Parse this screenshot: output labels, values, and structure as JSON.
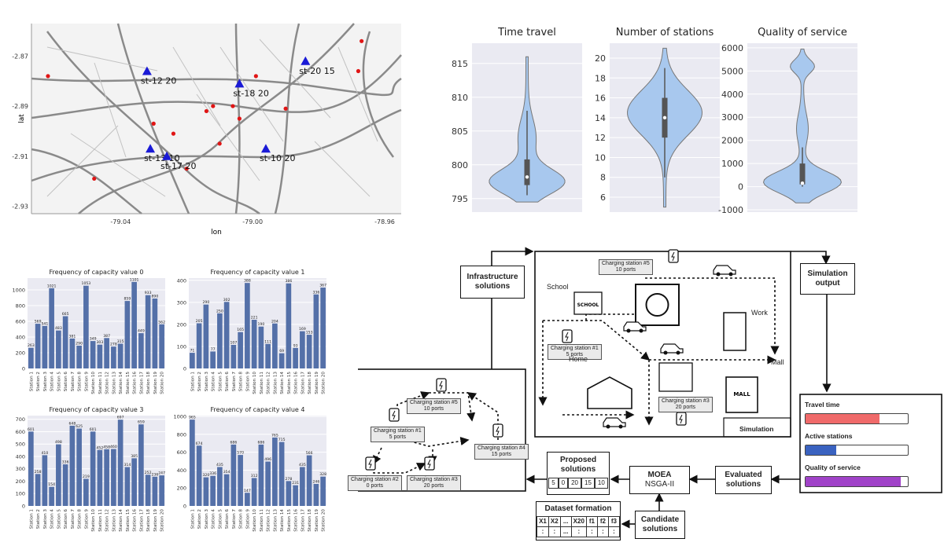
{
  "map": {
    "x_label": "lon",
    "y_label": "lat",
    "x_ticks": [
      "-79.04",
      "-79.00",
      "-78.96"
    ],
    "y_ticks": [
      "-2.87",
      "-2.89",
      "-2.91",
      "-2.93"
    ],
    "stations": [
      {
        "label": "st-12 20",
        "lon": -79.032,
        "lat": -2.876
      },
      {
        "label": "st-18 20",
        "lon": -79.004,
        "lat": -2.881
      },
      {
        "label": "st-20 15",
        "lon": -78.984,
        "lat": -2.872
      },
      {
        "label": "st-13 10",
        "lon": -79.031,
        "lat": -2.907
      },
      {
        "label": "st-17 20",
        "lon": -79.026,
        "lat": -2.91
      },
      {
        "label": "st-10 20",
        "lon": -78.996,
        "lat": -2.907
      }
    ],
    "points": [
      {
        "lon": -79.062,
        "lat": -2.878
      },
      {
        "lon": -79.03,
        "lat": -2.897
      },
      {
        "lon": -79.024,
        "lat": -2.901
      },
      {
        "lon": -79.004,
        "lat": -2.895
      },
      {
        "lon": -79.012,
        "lat": -2.89
      },
      {
        "lon": -79.014,
        "lat": -2.892
      },
      {
        "lon": -79.006,
        "lat": -2.89
      },
      {
        "lon": -78.999,
        "lat": -2.878
      },
      {
        "lon": -78.99,
        "lat": -2.891
      },
      {
        "lon": -78.967,
        "lat": -2.864
      },
      {
        "lon": -78.968,
        "lat": -2.876
      },
      {
        "lon": -79.01,
        "lat": -2.905
      },
      {
        "lon": -79.02,
        "lat": -2.915
      },
      {
        "lon": -79.048,
        "lat": -2.919
      }
    ],
    "colors": {
      "station": "#1a1ad6",
      "point": "#e01515",
      "road": "#8a8a8a"
    }
  },
  "violins": [
    {
      "title": "Time travel",
      "ticks": [
        "815",
        "810",
        "805",
        "800",
        "795"
      ],
      "range": [
        793,
        818
      ],
      "min": 794.5,
      "max": 816,
      "q1": 797,
      "median": 798.2,
      "q3": 800.8,
      "whisker": [
        795.5,
        808
      ]
    },
    {
      "title": "Number of stations",
      "ticks": [
        "20",
        "18",
        "16",
        "14",
        "12",
        "10",
        "8",
        "6"
      ],
      "range": [
        4.5,
        21.5
      ],
      "min": 5,
      "max": 21,
      "q1": 12,
      "median": 14,
      "q3": 16,
      "whisker": [
        8,
        19
      ]
    },
    {
      "title": "Quality of service",
      "ticks": [
        "6000",
        "5000",
        "4000",
        "3000",
        "2000",
        "1000",
        "0",
        "-1000"
      ],
      "range": [
        -1100,
        6200
      ],
      "min": -700,
      "max": 5950,
      "q1": 100,
      "median": 150,
      "q3": 1000,
      "whisker": [
        0,
        1700
      ]
    }
  ],
  "chart_data": [
    {
      "type": "bar",
      "title": "Frequency of capacity value 0",
      "categories": [
        "Station 1",
        "Station 2",
        "Station 3",
        "Station 4",
        "Station 5",
        "Station 6",
        "Station 7",
        "Station 8",
        "Station 9",
        "Station 10",
        "Station 11",
        "Station 12",
        "Station 13",
        "Station 14",
        "Station 15",
        "Station 16",
        "Station 17",
        "Station 18",
        "Station 19",
        "Station 20"
      ],
      "values": [
        263,
        569,
        541,
        1021,
        483,
        665,
        381,
        290,
        1053,
        349,
        303,
        387,
        278,
        315,
        859,
        1101,
        449,
        933,
        890,
        562
      ],
      "yticks": [
        "0",
        "200",
        "400",
        "600",
        "800",
        "1000"
      ],
      "ylim": [
        0,
        1150
      ]
    },
    {
      "type": "bar",
      "title": "Frequency of capacity value 1",
      "categories": [
        "Station 1",
        "Station 2",
        "Station 3",
        "Station 4",
        "Station 5",
        "Station 6",
        "Station 7",
        "Station 8",
        "Station 9",
        "Station 10",
        "Station 11",
        "Station 12",
        "Station 13",
        "Station 14",
        "Station 15",
        "Station 16",
        "Station 17",
        "Station 18",
        "Station 19",
        "Station 20"
      ],
      "values": [
        71,
        205,
        290,
        77,
        250,
        302,
        107,
        165,
        388,
        221,
        190,
        111,
        204,
        69,
        386,
        93,
        169,
        153,
        336,
        367
      ],
      "yticks": [
        "0",
        "100",
        "200",
        "300",
        "400"
      ],
      "ylim": [
        0,
        410
      ]
    },
    {
      "type": "bar",
      "title": "Frequency of capacity value 3",
      "categories": [
        "Station 1",
        "Station 2",
        "Station 3",
        "Station 4",
        "Station 5",
        "Station 6",
        "Station 7",
        "Station 8",
        "Station 9",
        "Station 10",
        "Station 11",
        "Station 12",
        "Station 13",
        "Station 14",
        "Station 15",
        "Station 16",
        "Station 17",
        "Station 18",
        "Station 19",
        "Station 20"
      ],
      "values": [
        601,
        258,
        410,
        154,
        498,
        336,
        648,
        625,
        219,
        601,
        452,
        458,
        460,
        697,
        314,
        385,
        659,
        252,
        236,
        247
      ],
      "yticks": [
        "0",
        "100",
        "200",
        "300",
        "400",
        "500",
        "600",
        "700"
      ],
      "ylim": [
        0,
        730
      ]
    },
    {
      "type": "bar",
      "title": "Frequency of capacity value 4",
      "categories": [
        "Station 1",
        "Station 2",
        "Station 3",
        "Station 4",
        "Station 5",
        "Station 6",
        "Station 7",
        "Station 8",
        "Station 9",
        "Station 10",
        "Station 11",
        "Station 12",
        "Station 13",
        "Station 14",
        "Station 15",
        "Station 16",
        "Station 17",
        "Station 18",
        "Station 19",
        "Station 20"
      ],
      "values": [
        965,
        674,
        320,
        336,
        435,
        354,
        686,
        570,
        147,
        312,
        686,
        496,
        765,
        715,
        278,
        231,
        435,
        566,
        246,
        328
      ],
      "yticks": [
        "0",
        "200",
        "400",
        "600",
        "800",
        "1000"
      ],
      "ylim": [
        0,
        1010
      ]
    }
  ],
  "diagram": {
    "infrastructure": "Infrastructure solutions",
    "simulation_output": "Simulation output",
    "simulation": "Simulation",
    "places": {
      "school": "School",
      "home": "Home",
      "work": "Work",
      "mall": "Mall"
    },
    "sim_tags": {
      "cs5": "Charging station #5\n10 ports",
      "cs1": "Charging station #1\n5 ports",
      "cs3": "Charging station #3\n20 ports"
    },
    "infra_tags": {
      "cs5": "Charging station #5\n10 ports",
      "cs1": "Charging station #1\n5 ports",
      "cs4": "Charging station #4\n15 ports",
      "cs2": "Charging station #2\n0 ports",
      "cs3": "Charging station #3\n20 ports"
    },
    "metrics": [
      {
        "label": "Travel time",
        "level": 0.72,
        "color": "#f06a6a"
      },
      {
        "label": "Active stations",
        "level": 0.3,
        "color": "#3a62c0"
      },
      {
        "label": "Quality of service",
        "level": 0.93,
        "color": "#a042c8"
      }
    ],
    "proposed": {
      "title": "Proposed solutions",
      "values": [
        "5",
        "0",
        "20",
        "15",
        "10"
      ]
    },
    "moea": {
      "title": "MOEA",
      "subtitle": "NSGA-II"
    },
    "evaluated": "Evaluated solutions",
    "candidate": "Candidate solutions",
    "dataset": {
      "title": "Dataset formation",
      "headers": [
        "X1",
        "X2",
        "...",
        "X20",
        "f1",
        "f2",
        "f3"
      ],
      "row": [
        ":",
        ":",
        "...",
        ":",
        ":",
        ":",
        ":"
      ]
    },
    "school_sign": "SCHOOL",
    "mall_sign": "MALL"
  }
}
